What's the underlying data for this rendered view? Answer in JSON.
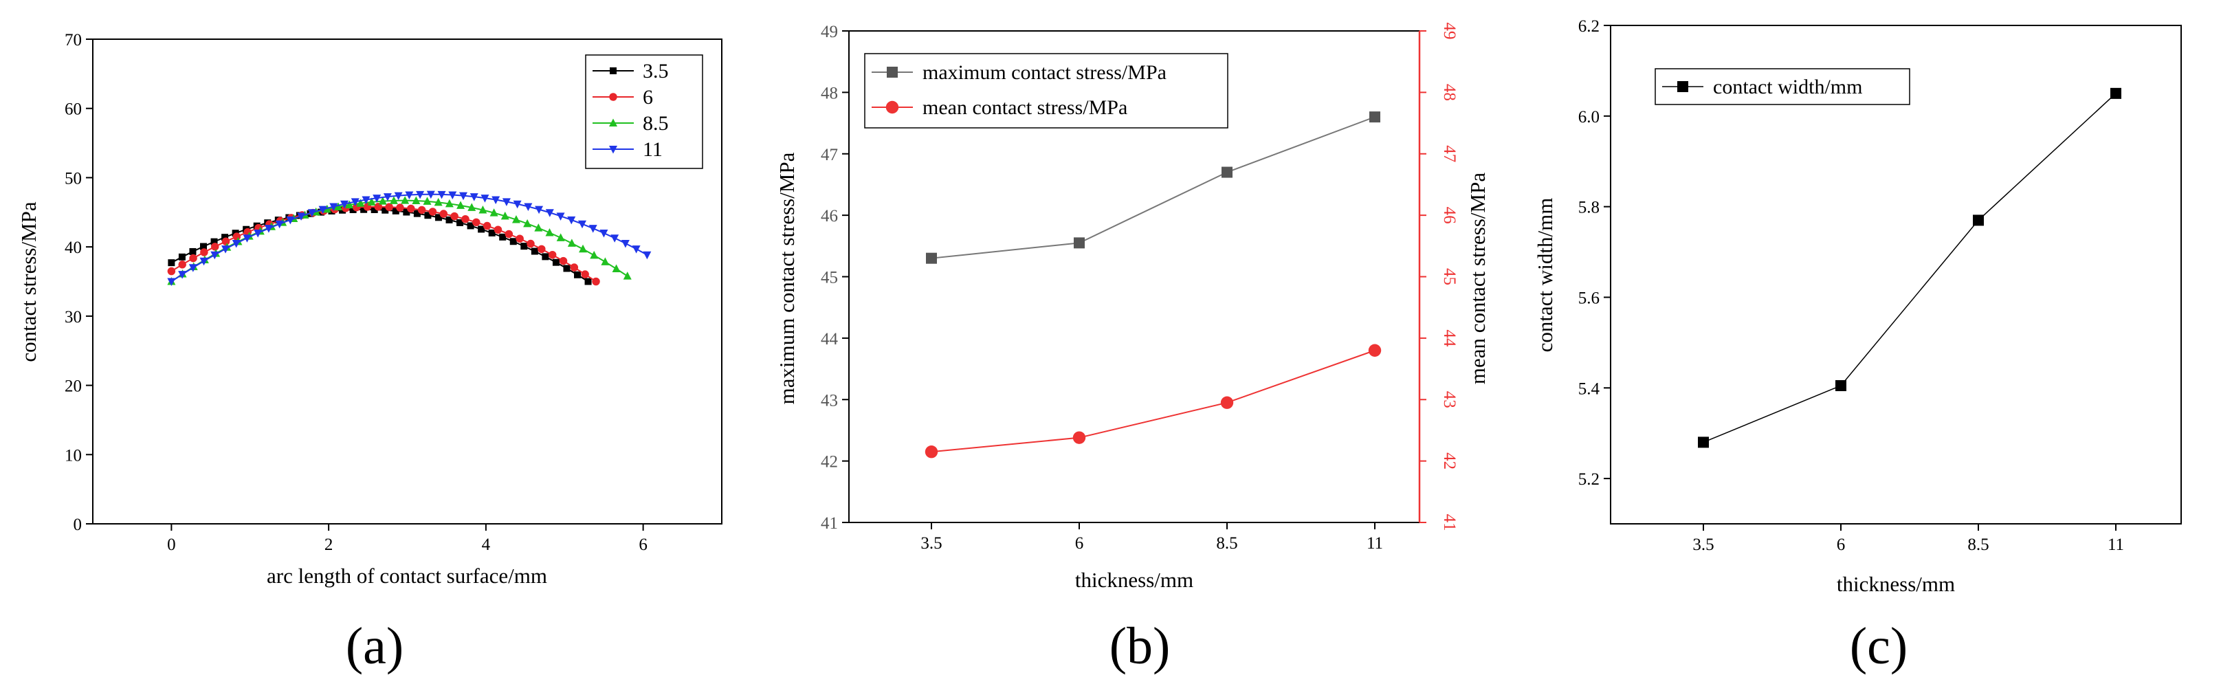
{
  "chart_data": [
    {
      "type": "line",
      "panel_label": "(a)",
      "xlabel": "arc length of contact surface/mm",
      "ylabel": "contact stress/MPa",
      "xlim": [
        -1.0,
        7.0
      ],
      "ylim": [
        0,
        70
      ],
      "xticks": [
        0,
        2,
        4,
        6
      ],
      "yticks": [
        0,
        10,
        20,
        30,
        40,
        50,
        60,
        70
      ],
      "legend_position": "top-right",
      "series": [
        {
          "name": "3.5",
          "color": "#000000",
          "marker": "square",
          "arc_max": 5.3,
          "center": 2.45,
          "peak": 45.4,
          "edge": 35,
          "points": 40
        },
        {
          "name": "6",
          "color": "#e8262b",
          "marker": "circle",
          "arc_max": 5.4,
          "center": 2.6,
          "peak": 45.8,
          "edge": 35,
          "points": 40
        },
        {
          "name": "8.5",
          "color": "#20c020",
          "marker": "triangle-up",
          "arc_max": 5.8,
          "center": 2.95,
          "peak": 46.7,
          "edge": 35,
          "points": 42
        },
        {
          "name": "11",
          "color": "#1f35e8",
          "marker": "triangle-down",
          "arc_max": 6.05,
          "center": 3.3,
          "peak": 47.6,
          "edge": 35,
          "points": 45
        }
      ]
    },
    {
      "type": "line",
      "panel_label": "(b)",
      "xlabel": "thickness/mm",
      "ylabel": "maximum contact stress/MPa",
      "y2label": "mean contact stress/MPa",
      "categories": [
        "3.5",
        "6",
        "8.5",
        "11"
      ],
      "ylim": [
        41,
        49
      ],
      "yticks": [
        41,
        42,
        43,
        44,
        45,
        46,
        47,
        48,
        49
      ],
      "legend_position": "top-left",
      "series": [
        {
          "name": "maximum contact stress/MPa",
          "color": "#555555",
          "line_color": "#777777",
          "marker": "square",
          "values": [
            45.3,
            45.55,
            46.7,
            47.6
          ]
        },
        {
          "name": "mean contact stress/MPa",
          "color": "#ee3333",
          "line_color": "#ee3333",
          "marker": "circle",
          "values": [
            42.15,
            42.38,
            42.95,
            43.8
          ]
        }
      ]
    },
    {
      "type": "line",
      "panel_label": "(c)",
      "xlabel": "thickness/mm",
      "ylabel": "contact width/mm",
      "categories": [
        "3.5",
        "6",
        "8.5",
        "11"
      ],
      "ylim": [
        5.1,
        6.2
      ],
      "yticks": [
        "5.2",
        "5.4",
        "5.6",
        "5.8",
        "6.0",
        "6.2"
      ],
      "legend_position": "top-left",
      "series": [
        {
          "name": "contact width/mm",
          "color": "#000000",
          "marker": "square",
          "values": [
            5.28,
            5.405,
            5.77,
            6.05
          ]
        }
      ]
    }
  ]
}
